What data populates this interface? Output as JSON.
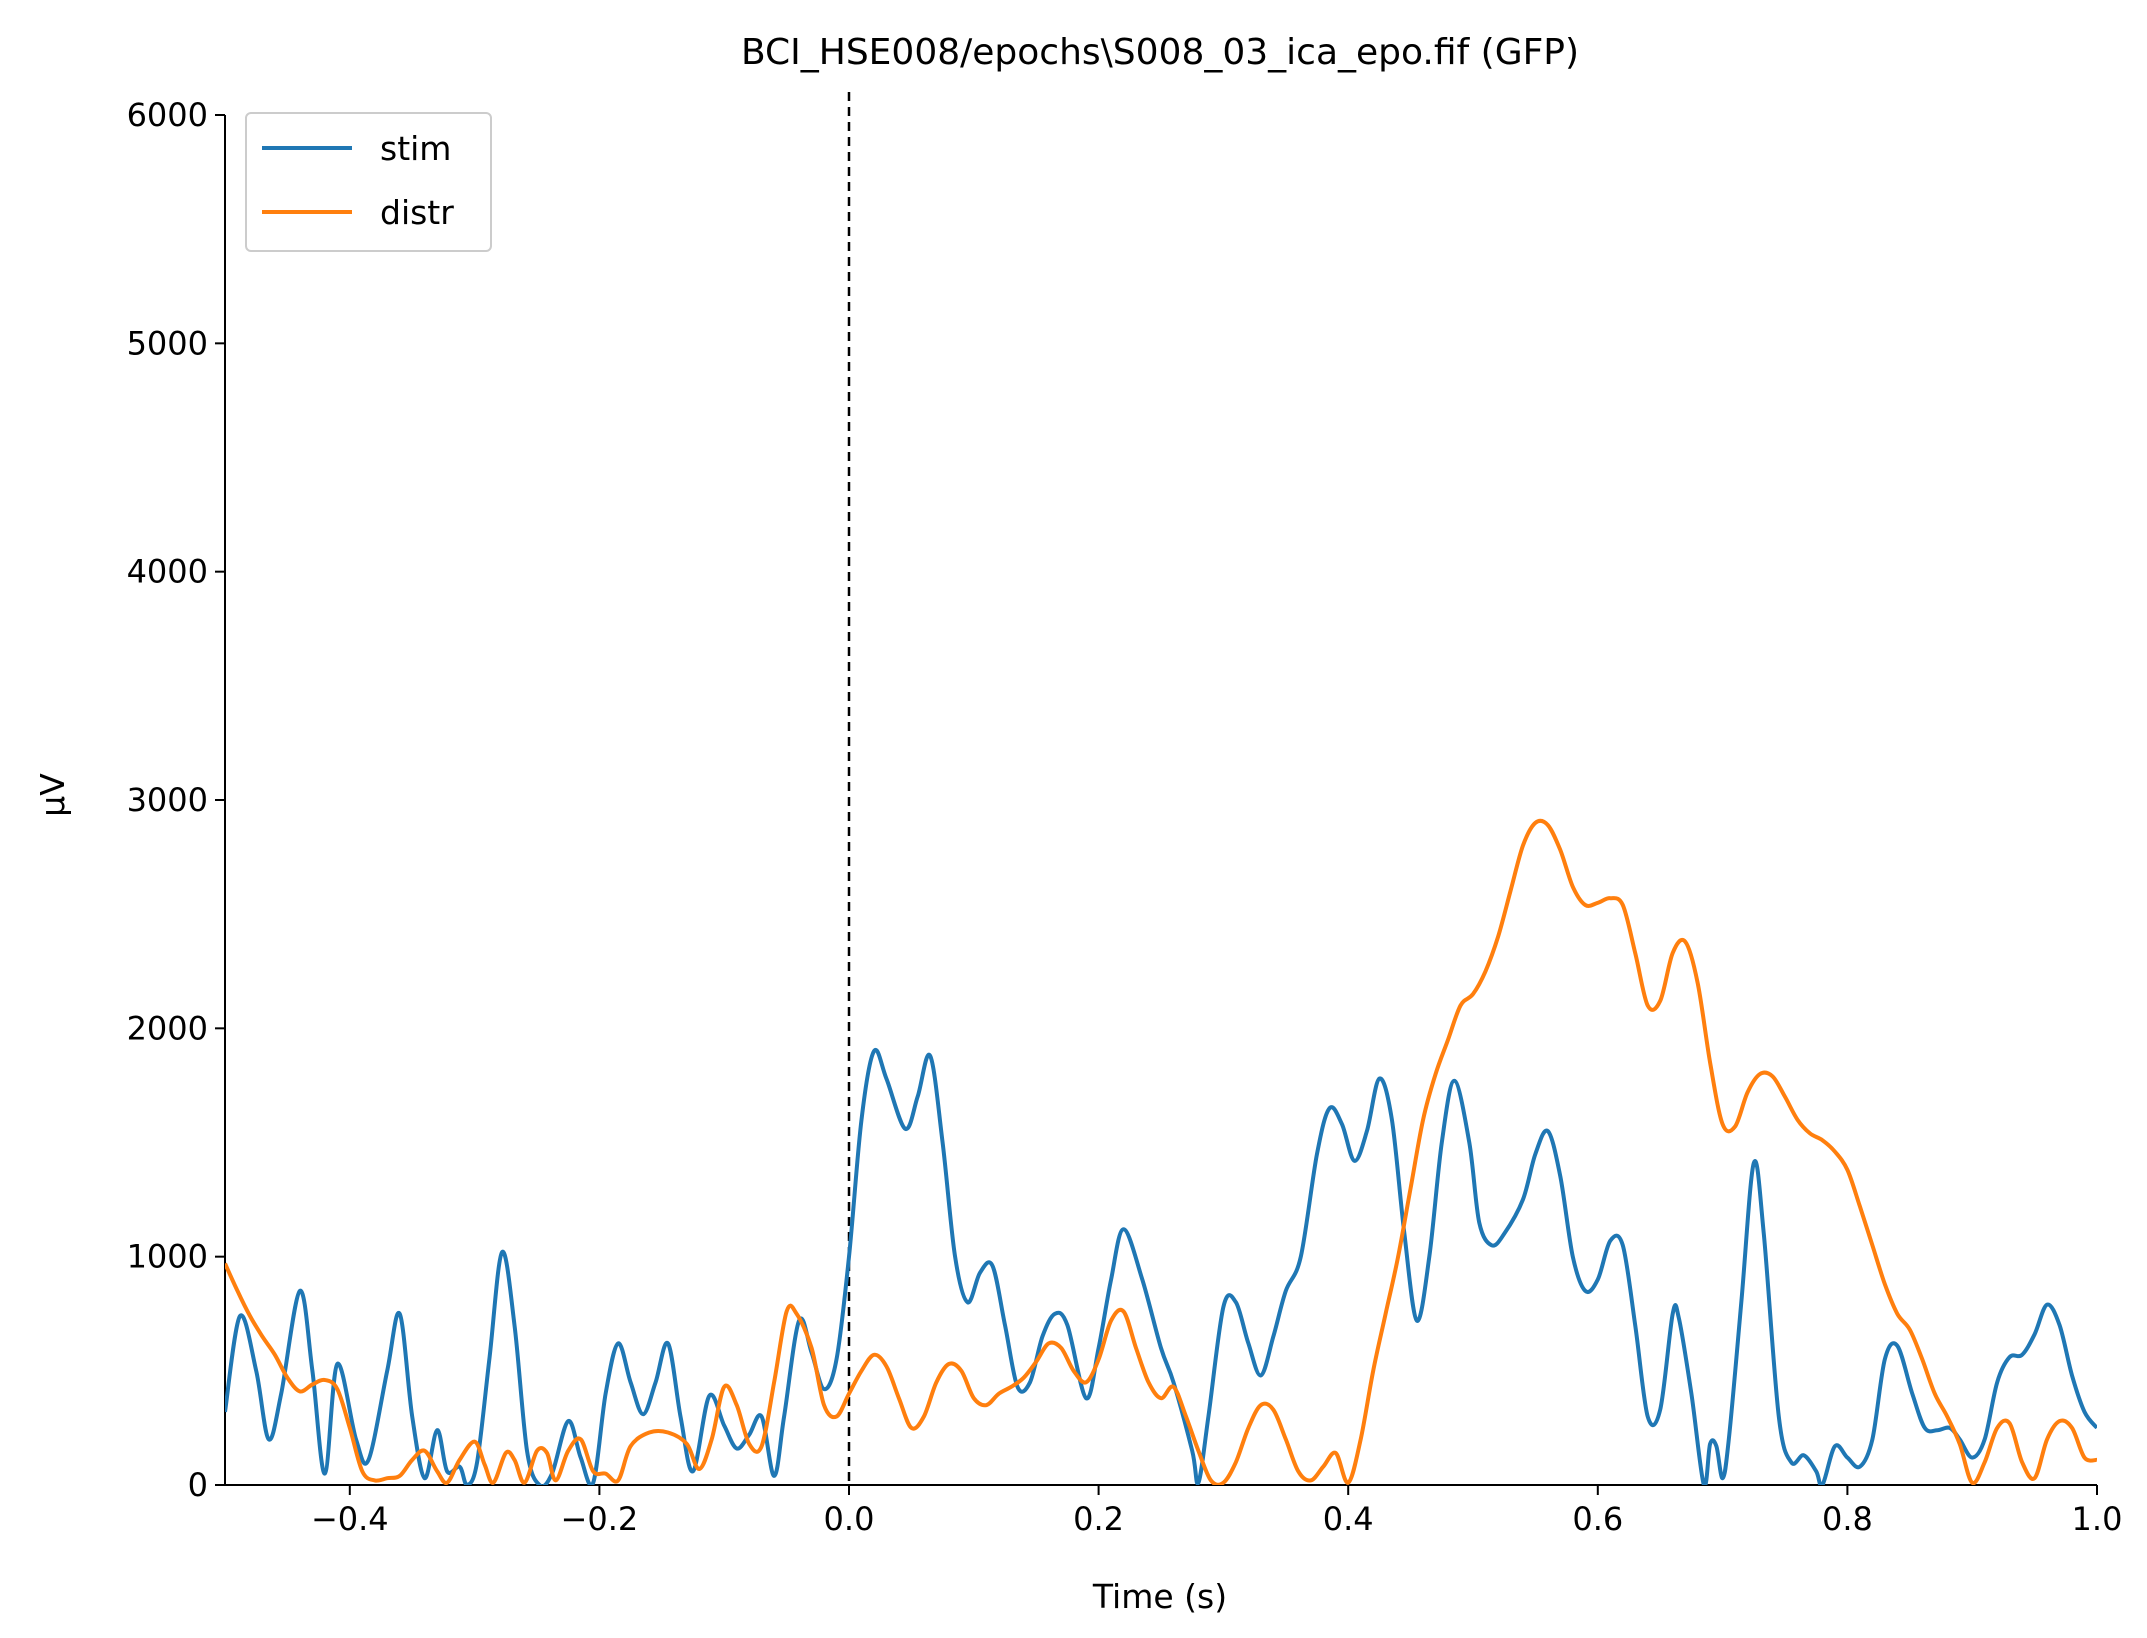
{
  "chart_data": {
    "type": "line",
    "title": "BCI_HSE008/epochs\\S008_03_ica_epo.fif (GFP)",
    "xlabel": "Time (s)",
    "ylabel": "µV",
    "xlim": [
      -0.5,
      1.0
    ],
    "ylim": [
      0,
      6000
    ],
    "x_ticks": [
      -0.4,
      -0.2,
      0.0,
      0.2,
      0.4,
      0.6,
      0.8,
      1.0
    ],
    "x_tick_labels": [
      "−0.4",
      "−0.2",
      "0.0",
      "0.2",
      "0.4",
      "0.6",
      "0.8",
      "1.0"
    ],
    "y_ticks": [
      0,
      1000,
      2000,
      3000,
      4000,
      5000,
      6000
    ],
    "y_tick_labels": [
      "0",
      "1000",
      "2000",
      "3000",
      "4000",
      "5000",
      "6000"
    ],
    "legend_position": "top-left",
    "grid": false,
    "annotations": [
      {
        "type": "vline",
        "x": 0.0,
        "style": "dashed",
        "color": "#000000"
      }
    ],
    "series": [
      {
        "name": "stim",
        "color": "#1f77b4",
        "points": [
          [
            -0.5,
            320
          ],
          [
            -0.488,
            740
          ],
          [
            -0.475,
            500
          ],
          [
            -0.465,
            200
          ],
          [
            -0.455,
            400
          ],
          [
            -0.44,
            850
          ],
          [
            -0.43,
            500
          ],
          [
            -0.42,
            50
          ],
          [
            -0.41,
            530
          ],
          [
            -0.395,
            200
          ],
          [
            -0.385,
            110
          ],
          [
            -0.37,
            500
          ],
          [
            -0.36,
            750
          ],
          [
            -0.35,
            300
          ],
          [
            -0.34,
            30
          ],
          [
            -0.33,
            240
          ],
          [
            -0.322,
            60
          ],
          [
            -0.312,
            80
          ],
          [
            -0.306,
            0
          ],
          [
            -0.298,
            100
          ],
          [
            -0.288,
            560
          ],
          [
            -0.278,
            1020
          ],
          [
            -0.268,
            700
          ],
          [
            -0.258,
            150
          ],
          [
            -0.248,
            0
          ],
          [
            -0.238,
            50
          ],
          [
            -0.225,
            280
          ],
          [
            -0.215,
            120
          ],
          [
            -0.205,
            10
          ],
          [
            -0.195,
            400
          ],
          [
            -0.185,
            620
          ],
          [
            -0.175,
            450
          ],
          [
            -0.165,
            310
          ],
          [
            -0.155,
            450
          ],
          [
            -0.145,
            620
          ],
          [
            -0.135,
            300
          ],
          [
            -0.125,
            60
          ],
          [
            -0.112,
            390
          ],
          [
            -0.1,
            260
          ],
          [
            -0.09,
            160
          ],
          [
            -0.08,
            220
          ],
          [
            -0.07,
            300
          ],
          [
            -0.06,
            40
          ],
          [
            -0.052,
            300
          ],
          [
            -0.04,
            720
          ],
          [
            -0.03,
            580
          ],
          [
            -0.02,
            420
          ],
          [
            -0.01,
            550
          ],
          [
            0.0,
            1000
          ],
          [
            0.01,
            1600
          ],
          [
            0.02,
            1900
          ],
          [
            0.03,
            1780
          ],
          [
            0.045,
            1560
          ],
          [
            0.055,
            1700
          ],
          [
            0.065,
            1880
          ],
          [
            0.075,
            1500
          ],
          [
            0.085,
            1000
          ],
          [
            0.095,
            800
          ],
          [
            0.105,
            930
          ],
          [
            0.115,
            960
          ],
          [
            0.125,
            700
          ],
          [
            0.135,
            430
          ],
          [
            0.145,
            450
          ],
          [
            0.155,
            650
          ],
          [
            0.165,
            750
          ],
          [
            0.175,
            700
          ],
          [
            0.19,
            380
          ],
          [
            0.2,
            600
          ],
          [
            0.21,
            900
          ],
          [
            0.22,
            1120
          ],
          [
            0.235,
            900
          ],
          [
            0.25,
            600
          ],
          [
            0.26,
            450
          ],
          [
            0.275,
            150
          ],
          [
            0.28,
            10
          ],
          [
            0.288,
            300
          ],
          [
            0.3,
            780
          ],
          [
            0.31,
            800
          ],
          [
            0.32,
            620
          ],
          [
            0.33,
            480
          ],
          [
            0.34,
            650
          ],
          [
            0.35,
            850
          ],
          [
            0.362,
            1000
          ],
          [
            0.375,
            1450
          ],
          [
            0.385,
            1650
          ],
          [
            0.395,
            1580
          ],
          [
            0.405,
            1420
          ],
          [
            0.415,
            1550
          ],
          [
            0.425,
            1780
          ],
          [
            0.435,
            1600
          ],
          [
            0.445,
            1100
          ],
          [
            0.455,
            720
          ],
          [
            0.465,
            1000
          ],
          [
            0.475,
            1500
          ],
          [
            0.485,
            1770
          ],
          [
            0.497,
            1500
          ],
          [
            0.505,
            1150
          ],
          [
            0.515,
            1050
          ],
          [
            0.525,
            1100
          ],
          [
            0.54,
            1250
          ],
          [
            0.55,
            1450
          ],
          [
            0.56,
            1550
          ],
          [
            0.57,
            1350
          ],
          [
            0.58,
            1000
          ],
          [
            0.59,
            850
          ],
          [
            0.6,
            900
          ],
          [
            0.61,
            1070
          ],
          [
            0.62,
            1050
          ],
          [
            0.63,
            700
          ],
          [
            0.64,
            300
          ],
          [
            0.65,
            330
          ],
          [
            0.66,
            750
          ],
          [
            0.665,
            730
          ],
          [
            0.675,
            400
          ],
          [
            0.685,
            0
          ],
          [
            0.69,
            180
          ],
          [
            0.695,
            170
          ],
          [
            0.7,
            30
          ],
          [
            0.705,
            200
          ],
          [
            0.715,
            800
          ],
          [
            0.725,
            1410
          ],
          [
            0.733,
            1100
          ],
          [
            0.745,
            300
          ],
          [
            0.755,
            100
          ],
          [
            0.765,
            130
          ],
          [
            0.775,
            60
          ],
          [
            0.78,
            0
          ],
          [
            0.79,
            170
          ],
          [
            0.8,
            120
          ],
          [
            0.81,
            80
          ],
          [
            0.82,
            200
          ],
          [
            0.83,
            550
          ],
          [
            0.84,
            610
          ],
          [
            0.852,
            400
          ],
          [
            0.862,
            250
          ],
          [
            0.872,
            240
          ],
          [
            0.882,
            250
          ],
          [
            0.89,
            200
          ],
          [
            0.9,
            120
          ],
          [
            0.91,
            200
          ],
          [
            0.92,
            450
          ],
          [
            0.93,
            560
          ],
          [
            0.94,
            570
          ],
          [
            0.95,
            660
          ],
          [
            0.96,
            790
          ],
          [
            0.97,
            700
          ],
          [
            0.98,
            480
          ],
          [
            0.99,
            320
          ],
          [
            1.0,
            250
          ]
        ]
      },
      {
        "name": "distr",
        "color": "#ff7f0e",
        "points": [
          [
            -0.5,
            970
          ],
          [
            -0.49,
            850
          ],
          [
            -0.48,
            740
          ],
          [
            -0.47,
            650
          ],
          [
            -0.46,
            570
          ],
          [
            -0.45,
            470
          ],
          [
            -0.44,
            410
          ],
          [
            -0.43,
            440
          ],
          [
            -0.42,
            460
          ],
          [
            -0.41,
            420
          ],
          [
            -0.4,
            250
          ],
          [
            -0.39,
            60
          ],
          [
            -0.38,
            20
          ],
          [
            -0.37,
            30
          ],
          [
            -0.36,
            40
          ],
          [
            -0.35,
            110
          ],
          [
            -0.34,
            150
          ],
          [
            -0.33,
            60
          ],
          [
            -0.322,
            10
          ],
          [
            -0.312,
            110
          ],
          [
            -0.3,
            190
          ],
          [
            -0.292,
            90
          ],
          [
            -0.285,
            10
          ],
          [
            -0.275,
            140
          ],
          [
            -0.268,
            110
          ],
          [
            -0.26,
            10
          ],
          [
            -0.25,
            150
          ],
          [
            -0.242,
            140
          ],
          [
            -0.235,
            20
          ],
          [
            -0.225,
            150
          ],
          [
            -0.215,
            200
          ],
          [
            -0.205,
            60
          ],
          [
            -0.195,
            50
          ],
          [
            -0.185,
            20
          ],
          [
            -0.175,
            170
          ],
          [
            -0.16,
            230
          ],
          [
            -0.145,
            230
          ],
          [
            -0.13,
            180
          ],
          [
            -0.12,
            70
          ],
          [
            -0.11,
            200
          ],
          [
            -0.1,
            430
          ],
          [
            -0.09,
            350
          ],
          [
            -0.08,
            180
          ],
          [
            -0.07,
            170
          ],
          [
            -0.06,
            450
          ],
          [
            -0.05,
            760
          ],
          [
            -0.042,
            750
          ],
          [
            -0.03,
            600
          ],
          [
            -0.02,
            350
          ],
          [
            -0.01,
            300
          ],
          [
            0.0,
            400
          ],
          [
            0.01,
            500
          ],
          [
            0.02,
            570
          ],
          [
            0.03,
            520
          ],
          [
            0.04,
            380
          ],
          [
            0.05,
            250
          ],
          [
            0.06,
            300
          ],
          [
            0.07,
            450
          ],
          [
            0.08,
            530
          ],
          [
            0.09,
            500
          ],
          [
            0.1,
            380
          ],
          [
            0.11,
            350
          ],
          [
            0.12,
            400
          ],
          [
            0.13,
            430
          ],
          [
            0.14,
            470
          ],
          [
            0.15,
            540
          ],
          [
            0.16,
            620
          ],
          [
            0.17,
            600
          ],
          [
            0.18,
            500
          ],
          [
            0.19,
            450
          ],
          [
            0.2,
            550
          ],
          [
            0.21,
            720
          ],
          [
            0.22,
            760
          ],
          [
            0.23,
            600
          ],
          [
            0.24,
            450
          ],
          [
            0.25,
            380
          ],
          [
            0.26,
            430
          ],
          [
            0.27,
            300
          ],
          [
            0.28,
            150
          ],
          [
            0.29,
            20
          ],
          [
            0.3,
            10
          ],
          [
            0.31,
            100
          ],
          [
            0.32,
            250
          ],
          [
            0.33,
            350
          ],
          [
            0.34,
            330
          ],
          [
            0.35,
            200
          ],
          [
            0.36,
            60
          ],
          [
            0.37,
            20
          ],
          [
            0.38,
            80
          ],
          [
            0.39,
            140
          ],
          [
            0.4,
            10
          ],
          [
            0.41,
            200
          ],
          [
            0.42,
            500
          ],
          [
            0.43,
            750
          ],
          [
            0.44,
            1000
          ],
          [
            0.45,
            1300
          ],
          [
            0.46,
            1600
          ],
          [
            0.47,
            1800
          ],
          [
            0.48,
            1950
          ],
          [
            0.49,
            2100
          ],
          [
            0.5,
            2150
          ],
          [
            0.51,
            2250
          ],
          [
            0.52,
            2400
          ],
          [
            0.53,
            2600
          ],
          [
            0.54,
            2800
          ],
          [
            0.55,
            2900
          ],
          [
            0.56,
            2890
          ],
          [
            0.57,
            2780
          ],
          [
            0.58,
            2620
          ],
          [
            0.59,
            2540
          ],
          [
            0.6,
            2550
          ],
          [
            0.61,
            2570
          ],
          [
            0.62,
            2540
          ],
          [
            0.63,
            2330
          ],
          [
            0.64,
            2100
          ],
          [
            0.65,
            2120
          ],
          [
            0.66,
            2330
          ],
          [
            0.67,
            2380
          ],
          [
            0.68,
            2200
          ],
          [
            0.69,
            1850
          ],
          [
            0.7,
            1580
          ],
          [
            0.71,
            1570
          ],
          [
            0.72,
            1720
          ],
          [
            0.73,
            1800
          ],
          [
            0.74,
            1790
          ],
          [
            0.75,
            1700
          ],
          [
            0.76,
            1600
          ],
          [
            0.77,
            1540
          ],
          [
            0.78,
            1510
          ],
          [
            0.79,
            1460
          ],
          [
            0.8,
            1380
          ],
          [
            0.81,
            1220
          ],
          [
            0.82,
            1050
          ],
          [
            0.83,
            880
          ],
          [
            0.84,
            750
          ],
          [
            0.85,
            680
          ],
          [
            0.86,
            550
          ],
          [
            0.87,
            400
          ],
          [
            0.88,
            300
          ],
          [
            0.89,
            180
          ],
          [
            0.9,
            10
          ],
          [
            0.91,
            100
          ],
          [
            0.92,
            250
          ],
          [
            0.93,
            270
          ],
          [
            0.94,
            100
          ],
          [
            0.95,
            30
          ],
          [
            0.96,
            200
          ],
          [
            0.97,
            280
          ],
          [
            0.98,
            250
          ],
          [
            0.99,
            120
          ],
          [
            1.0,
            110
          ]
        ]
      }
    ]
  }
}
